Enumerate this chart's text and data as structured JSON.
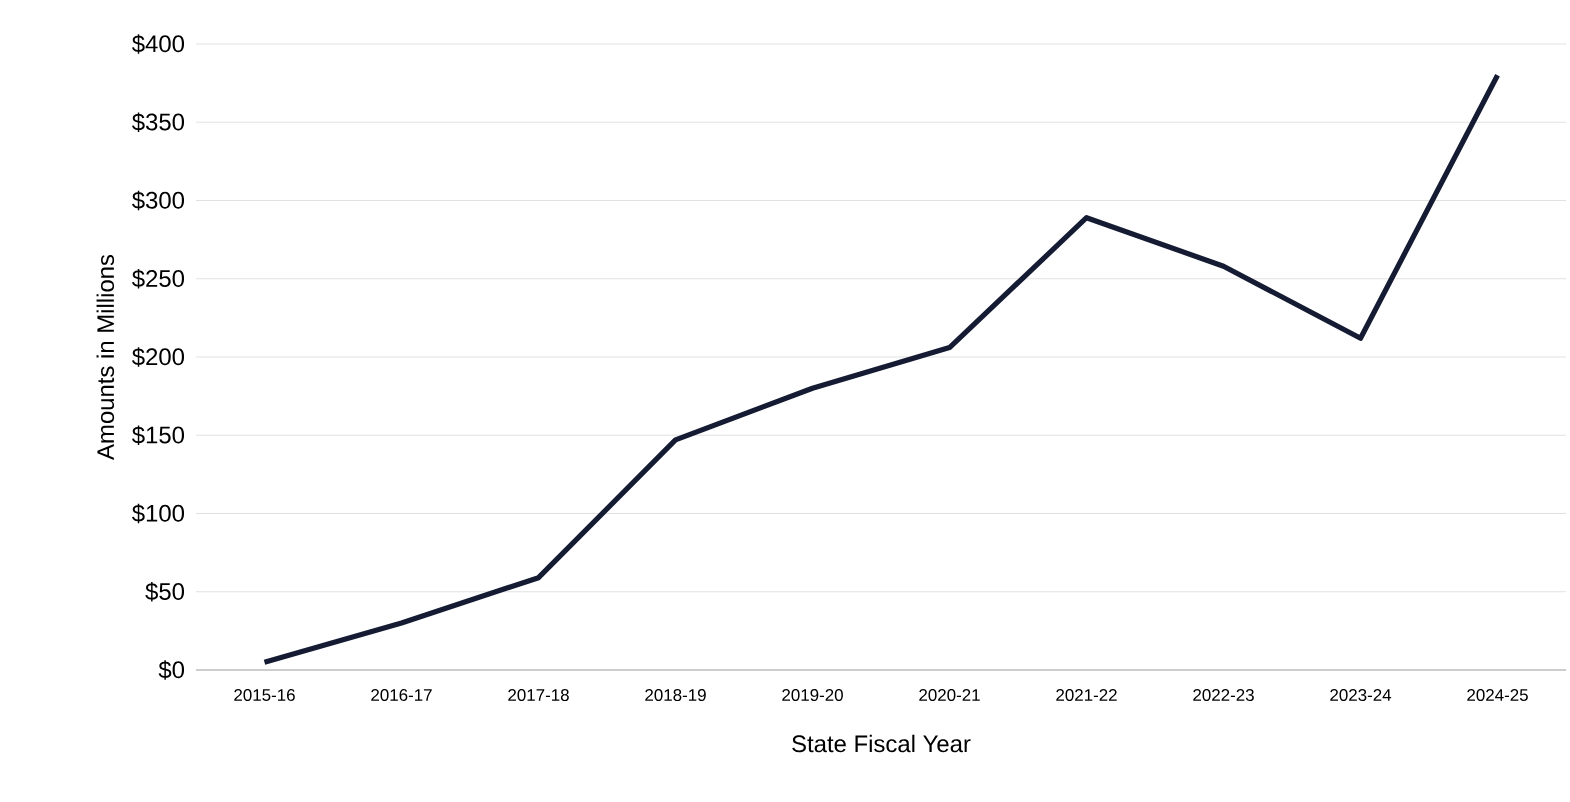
{
  "chart_data": {
    "type": "line",
    "xlabel": "State Fiscal Year",
    "ylabel": "Amounts in  Millions",
    "categories": [
      "2015-16",
      "2016-17",
      "2017-18",
      "2018-19",
      "2019-20",
      "2020-21",
      "2021-22",
      "2022-23",
      "2023-24",
      "2024-25"
    ],
    "series": [
      {
        "color": "#141b33",
        "values": [
          5,
          30,
          59,
          147,
          180,
          206,
          289,
          258,
          212,
          380
        ]
      }
    ],
    "ylim": [
      0,
      400
    ],
    "yticks": [
      {
        "value": 0,
        "label": "$0"
      },
      {
        "value": 50,
        "label": "$50"
      },
      {
        "value": 100,
        "label": "$100"
      },
      {
        "value": 150,
        "label": "$150"
      },
      {
        "value": 200,
        "label": "$200"
      },
      {
        "value": 250,
        "label": "$250"
      },
      {
        "value": 300,
        "label": "$300"
      },
      {
        "value": 350,
        "label": "$350"
      },
      {
        "value": 400,
        "label": "$400"
      }
    ],
    "grid": "y",
    "marker": "none",
    "line_style": "solid"
  }
}
